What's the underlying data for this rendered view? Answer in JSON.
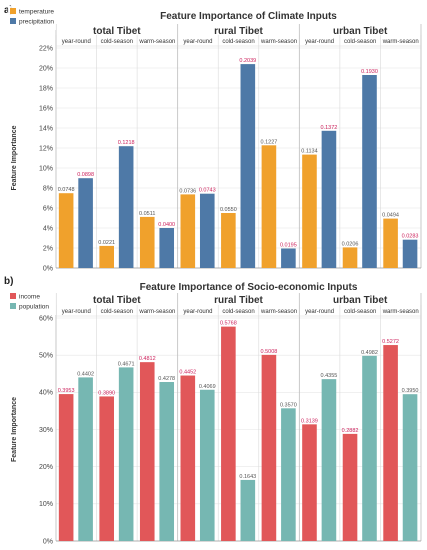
{
  "chart_data": [
    {
      "type": "bar",
      "panel_label": "a)",
      "title": "Feature Importance of Climate Inputs",
      "ylabel": "Feature Importance",
      "ylim": [
        0,
        0.22
      ],
      "y_ticks": [
        "0%",
        "2%",
        "4%",
        "6%",
        "8%",
        "10%",
        "12%",
        "14%",
        "16%",
        "18%",
        "20%",
        "22%"
      ],
      "grid": true,
      "legend_position": "top-left",
      "regions": [
        "total Tibet",
        "rural Tibet",
        "urban Tibet"
      ],
      "seasons": [
        "year-round",
        "cold-season",
        "warm-season"
      ],
      "series": [
        {
          "name": "temperature",
          "color": "#f0a12c",
          "values": [
            0.0748,
            0.0221,
            0.0511,
            0.0736,
            0.055,
            0.1227,
            0.1134,
            0.0206,
            0.0494
          ],
          "labels": [
            "0.0748",
            "0.0221",
            "0.0511",
            "0.0736",
            "0.0550",
            "0.1227",
            "0.1134",
            "0.0206",
            "0.0494"
          ]
        },
        {
          "name": "precipitation",
          "color": "#4e79a7",
          "values": [
            0.0898,
            0.1218,
            0.04,
            0.0743,
            0.2039,
            0.0195,
            0.1372,
            0.193,
            0.0283
          ],
          "labels": [
            "0.0898",
            "0.1218",
            "0.0400",
            "0.0743",
            "0.2039",
            "0.0195",
            "0.1372",
            "0.1930",
            "0.0283"
          ]
        }
      ]
    },
    {
      "type": "bar",
      "panel_label": "b)",
      "title": "Feature Importance of Socio-economic Inputs",
      "ylabel": "Feature Importance",
      "ylim": [
        0,
        0.6
      ],
      "y_ticks": [
        "0%",
        "10%",
        "20%",
        "30%",
        "40%",
        "50%",
        "60%"
      ],
      "grid": true,
      "legend_position": "top-left",
      "regions": [
        "total Tibet",
        "rural Tibet",
        "urban Tibet"
      ],
      "seasons": [
        "year-round",
        "cold-season",
        "warm-season"
      ],
      "series": [
        {
          "name": "income",
          "color": "#e15759",
          "values": [
            0.3953,
            0.389,
            0.4812,
            0.4452,
            0.5768,
            0.5008,
            0.3139,
            0.2882,
            0.5272
          ],
          "labels": [
            "0.3953",
            "0.3890",
            "0.4812",
            "0.4452",
            "0.5768",
            "0.5008",
            "0.3139",
            "0.2882",
            "0.5272"
          ]
        },
        {
          "name": "population",
          "color": "#76b7b2",
          "values": [
            0.4402,
            0.4671,
            0.4278,
            0.4069,
            0.1643,
            0.357,
            0.4355,
            0.4982,
            0.395
          ],
          "labels": [
            "0.4402",
            "0.4671",
            "0.4278",
            "0.4069",
            "0.1643",
            "0.3570",
            "0.4355",
            "0.4982",
            "0.3950"
          ]
        }
      ]
    }
  ]
}
